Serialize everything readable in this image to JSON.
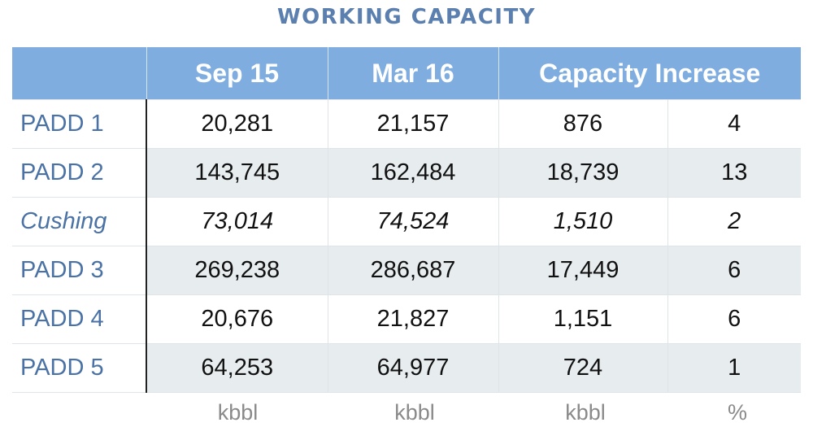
{
  "title": "WORKING CAPACITY",
  "chart_data": {
    "type": "table",
    "title": "WORKING CAPACITY",
    "columns": [
      "Sep 15",
      "Mar 16",
      "Capacity Increase"
    ],
    "units": [
      "kbbl",
      "kbbl",
      "kbbl",
      "%"
    ],
    "rows": [
      {
        "label": "PADD 1",
        "values": [
          "20,281",
          "21,157",
          "876",
          "4"
        ]
      },
      {
        "label": "PADD 2",
        "values": [
          "143,745",
          "162,484",
          "18,739",
          "13"
        ]
      },
      {
        "label": "Cushing",
        "values": [
          "73,014",
          "74,524",
          "1,510",
          "2"
        ]
      },
      {
        "label": "PADD 3",
        "values": [
          "269,238",
          "286,687",
          "17,449",
          "6"
        ]
      },
      {
        "label": "PADD 4",
        "values": [
          "20,676",
          "21,827",
          "1,151",
          "6"
        ]
      },
      {
        "label": "PADD 5",
        "values": [
          "64,253",
          "64,977",
          "724",
          "1"
        ]
      }
    ]
  },
  "colors": {
    "title": "#5b7fae",
    "header_bg": "#7fade0",
    "row_label": "#4a72a4",
    "alt_row_bg": "#e7ecef",
    "unit_text": "#8a8a8a"
  }
}
